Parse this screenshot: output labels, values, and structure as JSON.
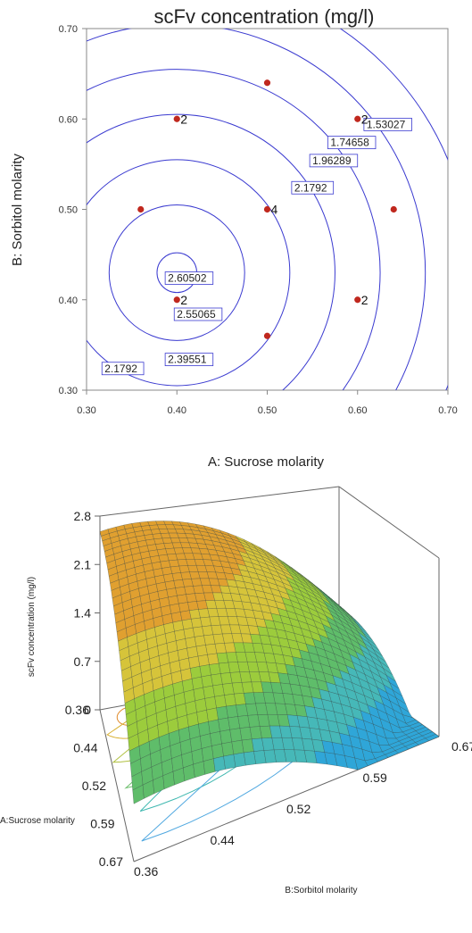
{
  "chart_data": [
    {
      "type": "contour",
      "title": "scFv concentration (mg/l)",
      "xlabel": "A: Sucrose molarity",
      "ylabel": "B: Sorbitol molarity",
      "xlim": [
        0.3,
        0.7
      ],
      "ylim": [
        0.3,
        0.7
      ],
      "x_ticks": [
        "0.30",
        "0.40",
        "0.50",
        "0.60",
        "0.70"
      ],
      "y_ticks": [
        "0.30",
        "0.40",
        "0.50",
        "0.60",
        "0.70"
      ],
      "contour_center": [
        0.4,
        0.43
      ],
      "contours": [
        {
          "level": 1.53027,
          "label": "1.53027",
          "radius": 0.325,
          "label_at": [
            0.61,
            0.59
          ]
        },
        {
          "level": 1.74658,
          "label": "1.74658",
          "radius": 0.275,
          "label_at": [
            0.57,
            0.57
          ]
        },
        {
          "level": 1.96289,
          "label": "1.96289",
          "radius": 0.225,
          "label_at": [
            0.55,
            0.55
          ]
        },
        {
          "level": 2.1792,
          "label": "2.1792",
          "radius": 0.175,
          "label_at": [
            0.53,
            0.52
          ]
        },
        {
          "level": 2.1792,
          "label": "2.1792",
          "radius": null,
          "label_at": [
            0.32,
            0.32
          ]
        },
        {
          "level": 2.39551,
          "label": "2.39551",
          "radius": 0.125,
          "label_at": [
            0.39,
            0.33
          ]
        },
        {
          "level": 2.55065,
          "label": "2.55065",
          "radius": 0.075,
          "label_at": [
            0.4,
            0.38
          ]
        },
        {
          "level": 2.60502,
          "label": "2.60502",
          "radius": 0.022,
          "label_at": [
            0.39,
            0.42
          ]
        }
      ],
      "design_points": [
        {
          "x": 0.5,
          "y": 0.64,
          "count": ""
        },
        {
          "x": 0.4,
          "y": 0.6,
          "count": "2"
        },
        {
          "x": 0.6,
          "y": 0.6,
          "count": "2"
        },
        {
          "x": 0.36,
          "y": 0.5,
          "count": ""
        },
        {
          "x": 0.5,
          "y": 0.5,
          "count": "4"
        },
        {
          "x": 0.64,
          "y": 0.5,
          "count": ""
        },
        {
          "x": 0.4,
          "y": 0.4,
          "count": "2"
        },
        {
          "x": 0.6,
          "y": 0.4,
          "count": "2"
        },
        {
          "x": 0.5,
          "y": 0.36,
          "count": ""
        }
      ],
      "colors": {
        "contour": "#3a3ad0",
        "point": "#c0281e",
        "label_box": "#3a3ad0"
      }
    },
    {
      "type": "surface",
      "zlabel": "scFv concentration (mg/l)",
      "xlabel": "A:Sucrose molarity",
      "ylabel": "B:Sorbitol molarity",
      "z_ticks": [
        "0",
        "0.7",
        "1.4",
        "2.1",
        "2.8"
      ],
      "x_ticks": [
        "0.36",
        "0.44",
        "0.52",
        "0.59",
        "0.67"
      ],
      "y_ticks": [
        "0.36",
        "0.44",
        "0.52",
        "0.59",
        "0.67"
      ],
      "zlim": [
        0,
        2.8
      ],
      "surface_peak": 2.62,
      "surface_corner_low": 0.2,
      "palette": [
        "#2fa6d8",
        "#46b8b8",
        "#5fbd6a",
        "#9ccc3c",
        "#d6c43a",
        "#e0a030"
      ]
    }
  ]
}
